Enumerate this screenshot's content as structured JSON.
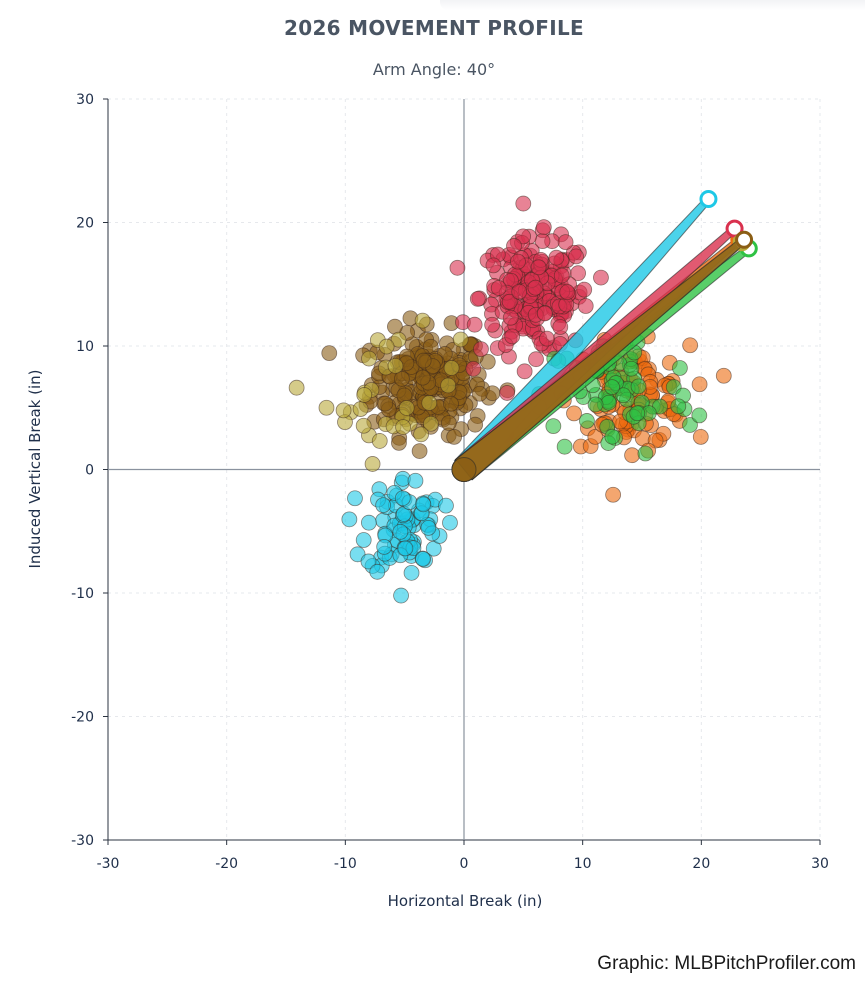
{
  "title": "2026 MOVEMENT PROFILE",
  "subtitle": "Arm Angle: 40°",
  "credit": "Graphic: MLBPitchProfiler.com",
  "chart_data": {
    "type": "scatter",
    "xlabel": "Horizontal Break (in)",
    "ylabel": "Induced Vertical Break (in)",
    "xlim": [
      -30,
      30
    ],
    "ylim": [
      -30,
      30
    ],
    "xticks": [
      -30,
      -20,
      -10,
      0,
      10,
      20,
      30
    ],
    "yticks": [
      -30,
      -20,
      -10,
      0,
      10,
      20,
      30
    ],
    "grid": true,
    "origin_lines": true,
    "series": [
      {
        "color": "#8b5e15",
        "center": [
          -3,
          7
        ],
        "spread": [
          2.4,
          2.1
        ],
        "count": 230,
        "arrow_tip": [
          23.6,
          18.6
        ]
      },
      {
        "color": "#b9a93a",
        "center": [
          -6,
          6
        ],
        "spread": [
          2.8,
          2.6
        ],
        "count": 32,
        "arrow_tip": [
          23.4,
          18.4
        ]
      },
      {
        "color": "#d9314e",
        "center": [
          6,
          14
        ],
        "spread": [
          2.3,
          2.3
        ],
        "count": 210,
        "arrow_tip": [
          22.8,
          19.5
        ]
      },
      {
        "color": "#ec6b0f",
        "center": [
          14,
          6
        ],
        "spread": [
          2.5,
          2.0
        ],
        "count": 110,
        "arrow_tip": [
          23.2,
          18.6
        ]
      },
      {
        "color": "#2fc244",
        "center": [
          13,
          6
        ],
        "spread": [
          3.2,
          2.6
        ],
        "count": 70,
        "arrow_tip": [
          24.0,
          17.9
        ]
      },
      {
        "color": "#1ec8e6",
        "center": [
          -5,
          -4.5
        ],
        "spread": [
          1.6,
          2.0
        ],
        "count": 85,
        "arrow_tip": [
          20.6,
          21.9
        ]
      }
    ]
  }
}
